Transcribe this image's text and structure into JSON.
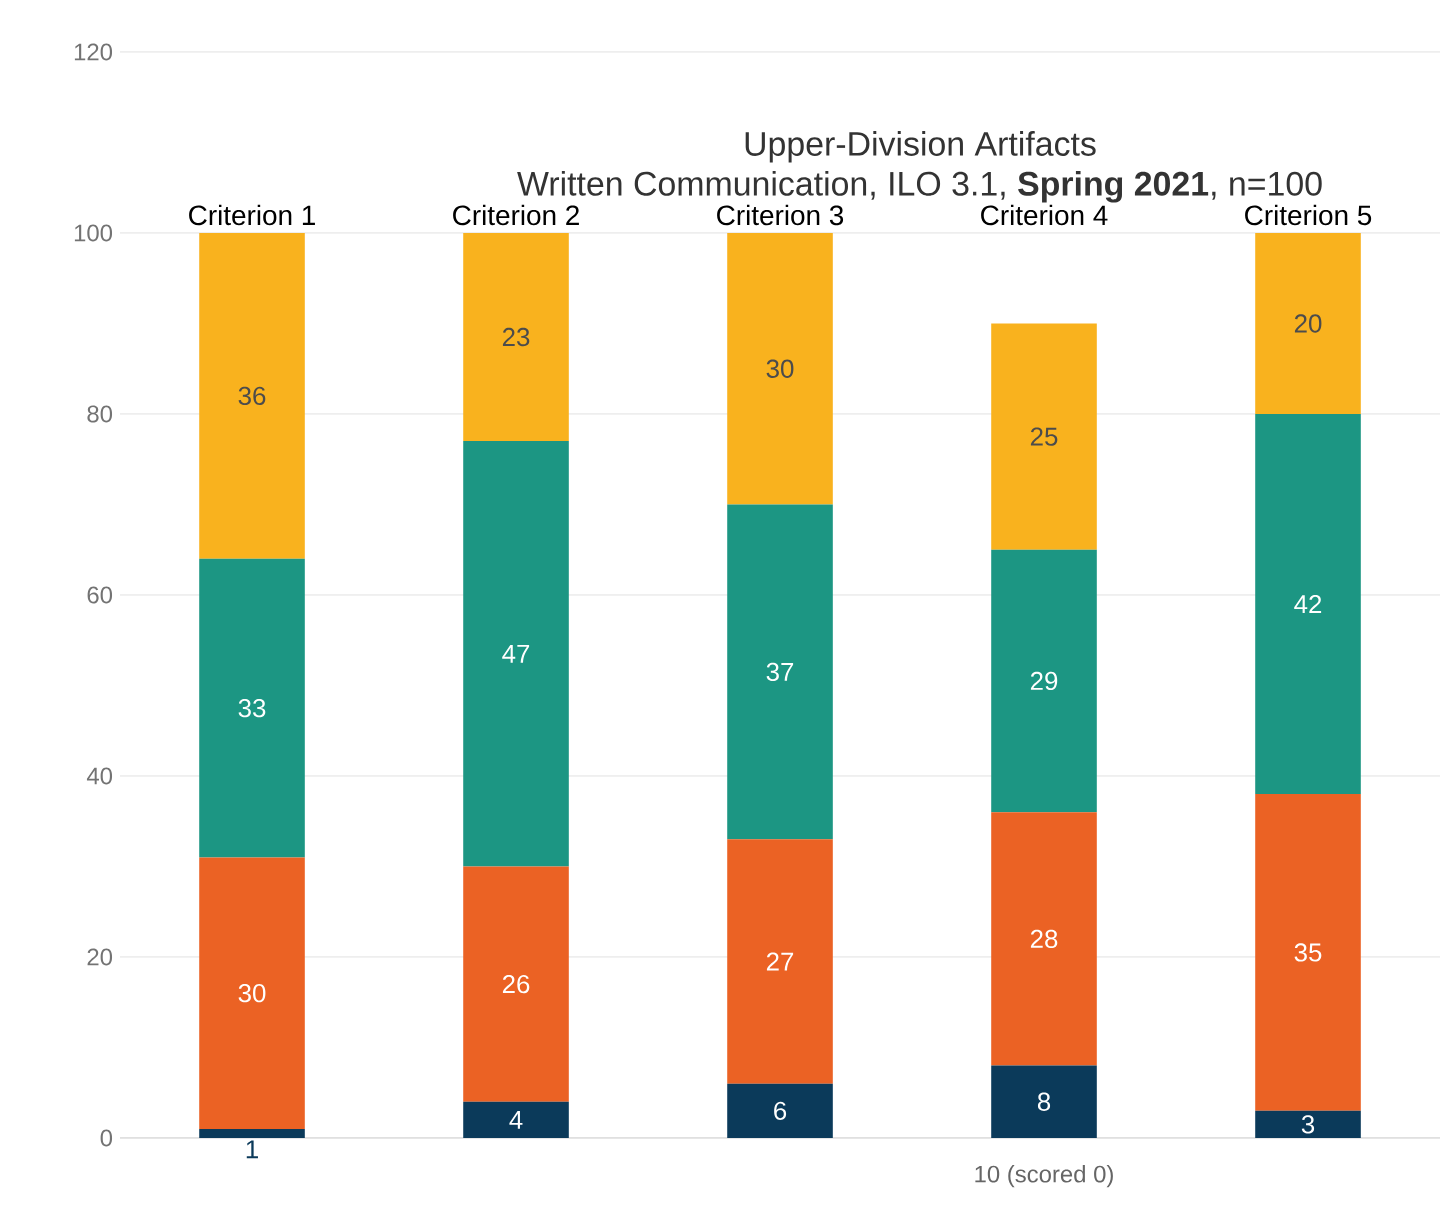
{
  "chart_data": {
    "type": "bar",
    "stacked": true,
    "title": "Upper-Division Artifacts",
    "subtitle": "Written Communication, ILO 3.1, **Spring 2021**, n=100",
    "categories": [
      "Criterion 1",
      "Criterion 2",
      "Criterion 3",
      "Criterion 4",
      "Criterion 5"
    ],
    "series": [
      {
        "color": "#0b3a5a",
        "values": [
          1,
          4,
          6,
          8,
          3
        ]
      },
      {
        "color": "#eb6224",
        "values": [
          30,
          26,
          27,
          28,
          35
        ]
      },
      {
        "color": "#1c9683",
        "values": [
          33,
          47,
          37,
          29,
          42
        ]
      },
      {
        "color": "#f9b21e",
        "values": [
          36,
          23,
          30,
          25,
          20
        ]
      }
    ],
    "ylim": [
      0,
      120
    ],
    "yticks": [
      0,
      20,
      40,
      60,
      80,
      100,
      120
    ],
    "grid": "y",
    "data_labels": true,
    "annotations": [
      "10 (scored 0)"
    ]
  }
}
